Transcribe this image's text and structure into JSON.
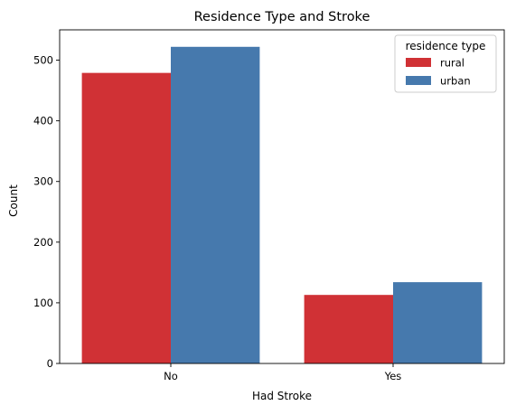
{
  "chart_data": {
    "type": "bar",
    "title": "Residence Type and Stroke",
    "xlabel": "Had Stroke",
    "ylabel": "Count",
    "categories": [
      "No",
      "Yes"
    ],
    "ylim": [
      0,
      550
    ],
    "yticks": [
      0,
      100,
      200,
      300,
      400,
      500
    ],
    "grid": false,
    "legend": {
      "title": "residence type",
      "placement": "top-right"
    },
    "series": [
      {
        "name": "rural",
        "color": "#d03135",
        "values": [
          479,
          113
        ]
      },
      {
        "name": "urban",
        "color": "#4679ad",
        "values": [
          522,
          134
        ]
      }
    ]
  }
}
